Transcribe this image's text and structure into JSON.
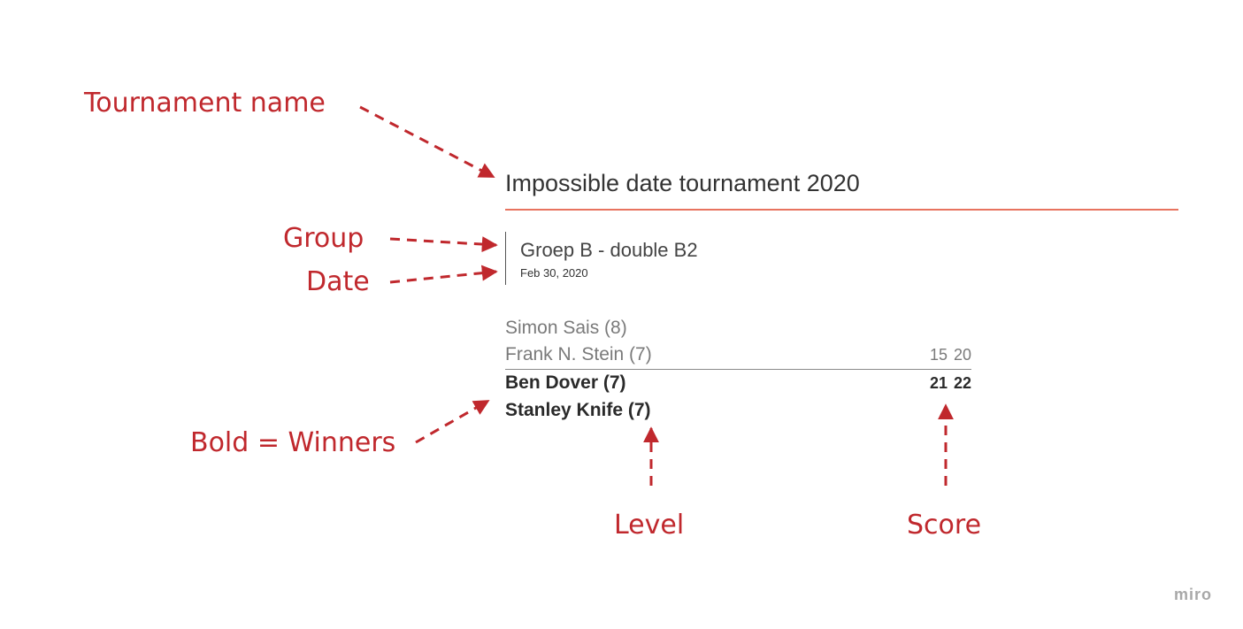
{
  "annotations": {
    "tournament_name": "Tournament name",
    "group": "Group",
    "date": "Date",
    "winners": "Bold = Winners",
    "level": "Level",
    "score": "Score"
  },
  "card": {
    "title": "Impossible date tournament 2020",
    "group_name": "Groep B - double B2",
    "date": "Feb 30, 2020",
    "losers": [
      "Simon Sais (8)",
      "Frank N. Stein (7)"
    ],
    "loser_score": "15 20",
    "winners": [
      "Ben Dover (7)",
      "Stanley Knife (7)"
    ],
    "winner_score": "21 22"
  },
  "brand": "miro",
  "colors": {
    "annotation": "#c0282d",
    "title_rule": "#e8735f"
  }
}
